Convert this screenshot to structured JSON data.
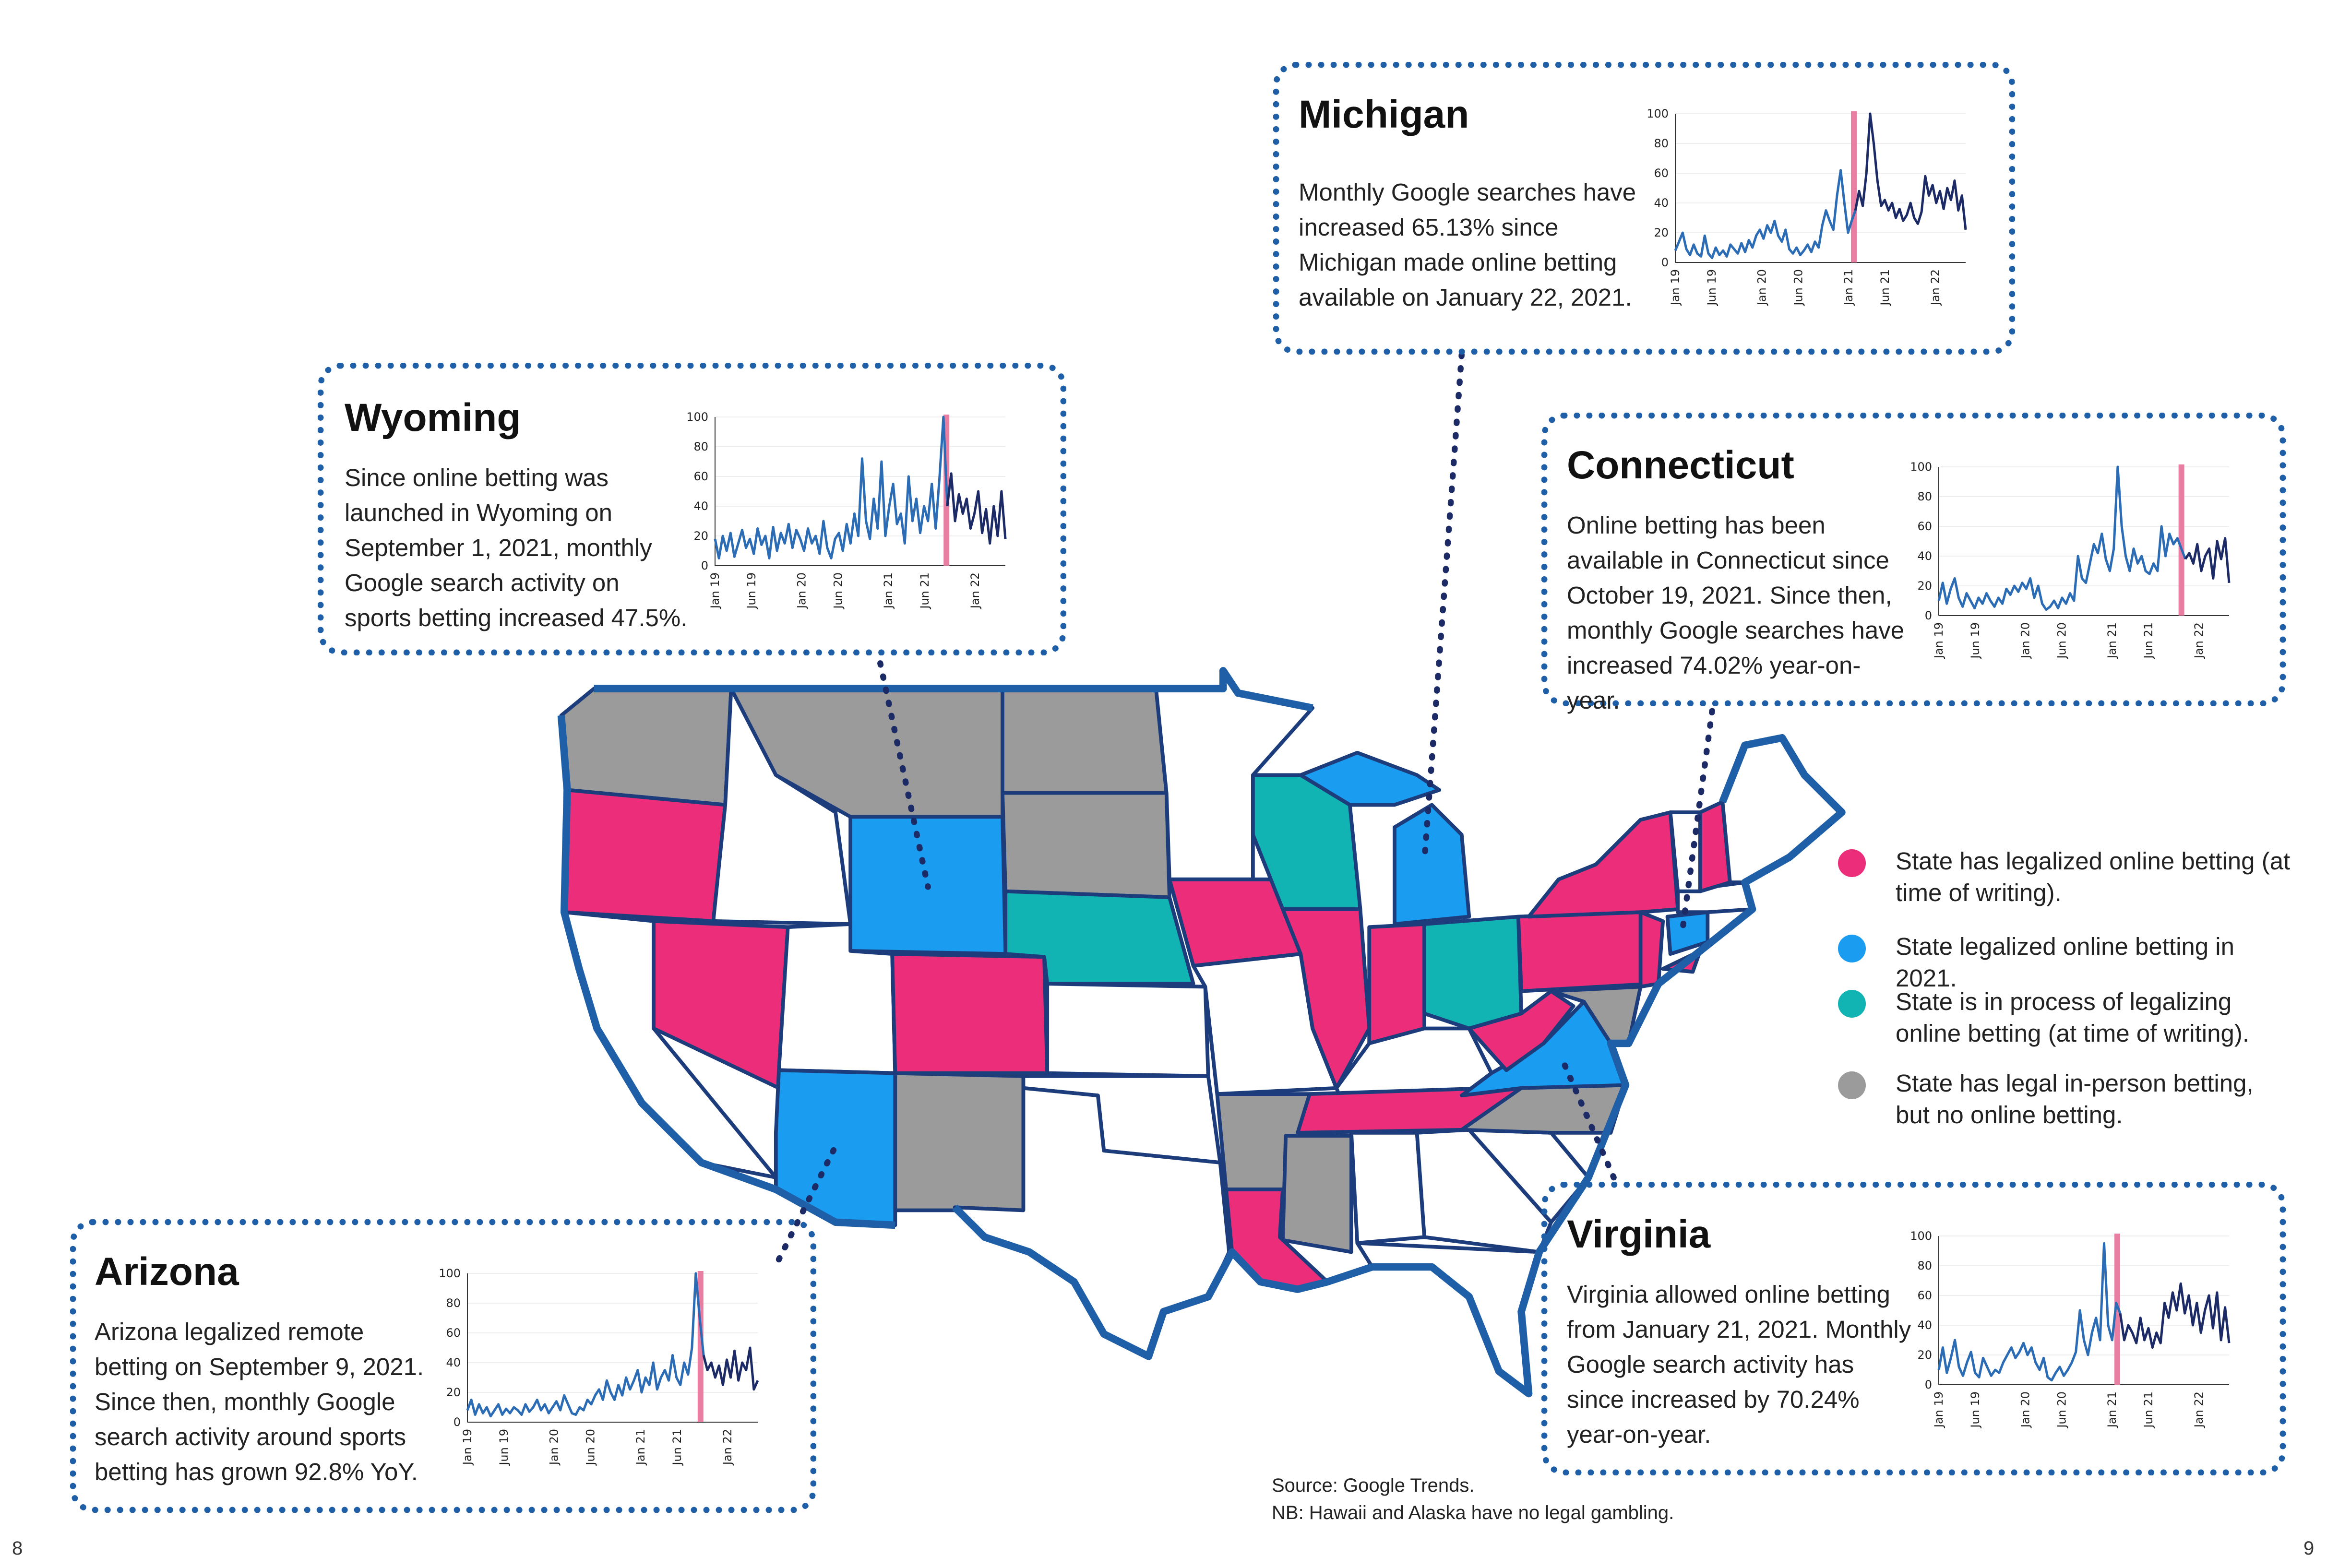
{
  "legend": {
    "items": [
      {
        "label": "State has legalized online betting (at time of writing).",
        "color": "#ec2e7a"
      },
      {
        "label": "State legalized online betting in 2021.",
        "color": "#1a9cf0"
      },
      {
        "label": "State is in process of legalizing online betting (at time of writing).",
        "color": "#12b3b3"
      },
      {
        "label": "State has legal in-person betting, but no online betting.",
        "color": "#9b9b9b"
      }
    ]
  },
  "map_colors": {
    "legal": "#ec2e7a",
    "legal_2021": "#1a9cf0",
    "in_process": "#12b3b3",
    "in_person": "#9b9b9b",
    "none": "#ffffff",
    "border": "#1c3c7c"
  },
  "source": "Source: Google Trends.",
  "nb": "NB: Hawaii and Alaska have no legal gambling.",
  "page_left": "8",
  "page_right": "9",
  "callouts": {
    "michigan": {
      "title": "Michigan",
      "text": "Monthly Google searches have increased 65.13% since Michigan made online betting available on January 22, 2021."
    },
    "wyoming": {
      "title": "Wyoming",
      "text": "Since online betting was launched in Wyoming on September 1, 2021, monthly Google search activity on sports betting increased 47.5%."
    },
    "connecticut": {
      "title": "Connecticut",
      "text": "Online betting has been available in Connecticut since October 19, 2021. Since then, monthly Google searches have increased 74.02% year-on-year."
    },
    "arizona": {
      "title": "Arizona",
      "text": "Arizona legalized remote betting on September 9, 2021. Since then, monthly Google search activity around sports betting has grown 92.8% YoY."
    },
    "virginia": {
      "title": "Virginia",
      "text": "Virginia allowed online betting from January 21, 2021. Monthly Google search activity has since increased by 70.24% year-on-year."
    }
  },
  "chart_data": [
    {
      "type": "line",
      "state": "Michigan",
      "title": "",
      "xlabel": "",
      "ylabel": "",
      "ylim": [
        0,
        100
      ],
      "yticks": [
        "0",
        "20",
        "40",
        "60",
        "80",
        "100"
      ],
      "xticks": [
        "Jan 19",
        "Jun 19",
        "Jan 20",
        "Jun 20",
        "Jan 21",
        "Jun 21",
        "Jan 22"
      ],
      "x_range": [
        2019.0,
        2022.35
      ],
      "highlight_x": 2021.06,
      "highlight_color": "#e87fa3",
      "series_color_before": "#2b6cb5",
      "series_color_after": "#1c2a66",
      "values": [
        8,
        14,
        20,
        9,
        5,
        12,
        6,
        4,
        18,
        6,
        3,
        10,
        5,
        8,
        4,
        12,
        9,
        6,
        13,
        7,
        15,
        10,
        18,
        22,
        16,
        25,
        20,
        28,
        18,
        14,
        22,
        9,
        6,
        10,
        5,
        8,
        12,
        7,
        14,
        10,
        25,
        35,
        28,
        22,
        45,
        62,
        40,
        20,
        28,
        35,
        48,
        38,
        60,
        100,
        80,
        55,
        38,
        42,
        35,
        40,
        30,
        36,
        28,
        32,
        40,
        30,
        26,
        34,
        58,
        45,
        52,
        40,
        48,
        36,
        50,
        42,
        55,
        35,
        45,
        22
      ]
    },
    {
      "type": "line",
      "state": "Wyoming",
      "title": "",
      "xlabel": "",
      "ylabel": "",
      "ylim": [
        0,
        100
      ],
      "yticks": [
        "0",
        "20",
        "40",
        "60",
        "80",
        "100"
      ],
      "xticks": [
        "Jan 19",
        "Jun 19",
        "Jan 20",
        "Jun 20",
        "Jan 21",
        "Jun 21",
        "Jan 22"
      ],
      "x_range": [
        2019.0,
        2022.35
      ],
      "highlight_x": 2021.67,
      "highlight_color": "#e87fa3",
      "series_color_before": "#2b6cb5",
      "series_color_after": "#1c2a66",
      "values": [
        18,
        5,
        20,
        10,
        22,
        6,
        15,
        24,
        12,
        18,
        8,
        25,
        14,
        20,
        5,
        26,
        10,
        22,
        15,
        28,
        12,
        24,
        18,
        10,
        25,
        15,
        20,
        8,
        30,
        12,
        5,
        18,
        22,
        10,
        28,
        15,
        35,
        20,
        72,
        30,
        18,
        45,
        25,
        70,
        20,
        40,
        55,
        28,
        35,
        15,
        60,
        30,
        45,
        22,
        40,
        30,
        55,
        25,
        60,
        100,
        40,
        62,
        30,
        48,
        35,
        45,
        25,
        35,
        50,
        22,
        38,
        15,
        40,
        20,
        50,
        18
      ]
    },
    {
      "type": "line",
      "state": "Connecticut",
      "title": "",
      "xlabel": "",
      "ylabel": "",
      "ylim": [
        0,
        100
      ],
      "yticks": [
        "0",
        "20",
        "40",
        "60",
        "80",
        "100"
      ],
      "xticks": [
        "Jan 19",
        "Jun 19",
        "Jan 20",
        "Jun 20",
        "Jan 21",
        "Jun 21",
        "Jan 22"
      ],
      "x_range": [
        2019.0,
        2022.35
      ],
      "highlight_x": 2021.8,
      "highlight_color": "#e87fa3",
      "series_color_before": "#2b6cb5",
      "series_color_after": "#1c2a66",
      "values": [
        10,
        22,
        8,
        18,
        25,
        12,
        6,
        15,
        10,
        5,
        12,
        8,
        15,
        10,
        6,
        12,
        8,
        18,
        14,
        20,
        16,
        22,
        18,
        25,
        12,
        20,
        8,
        4,
        6,
        10,
        5,
        12,
        8,
        15,
        10,
        40,
        25,
        22,
        35,
        48,
        42,
        55,
        38,
        30,
        45,
        100,
        60,
        40,
        30,
        45,
        35,
        40,
        30,
        28,
        35,
        30,
        60,
        40,
        55,
        48,
        52,
        45,
        38,
        42,
        35,
        48,
        30,
        40,
        45,
        25,
        50,
        38,
        52,
        22
      ]
    },
    {
      "type": "line",
      "state": "Arizona",
      "title": "",
      "xlabel": "",
      "ylabel": "",
      "ylim": [
        0,
        100
      ],
      "yticks": [
        "0",
        "20",
        "40",
        "60",
        "80",
        "100"
      ],
      "xticks": [
        "Jan 19",
        "Jun 19",
        "Jan 20",
        "Jun 20",
        "Jan 21",
        "Jun 21",
        "Jan 22"
      ],
      "x_range": [
        2019.0,
        2022.35
      ],
      "highlight_x": 2021.69,
      "highlight_color": "#e87fa3",
      "series_color_before": "#2b6cb5",
      "series_color_after": "#1c2a66",
      "values": [
        8,
        15,
        5,
        12,
        6,
        10,
        4,
        8,
        12,
        5,
        9,
        6,
        10,
        8,
        5,
        12,
        7,
        10,
        15,
        8,
        12,
        6,
        10,
        14,
        8,
        18,
        12,
        6,
        5,
        10,
        8,
        15,
        12,
        18,
        22,
        15,
        28,
        20,
        15,
        25,
        18,
        30,
        22,
        28,
        35,
        20,
        30,
        25,
        40,
        22,
        30,
        35,
        28,
        45,
        30,
        25,
        40,
        32,
        50,
        100,
        70,
        45,
        35,
        40,
        30,
        38,
        25,
        42,
        30,
        48,
        28,
        40,
        35,
        50,
        22,
        28
      ]
    },
    {
      "type": "line",
      "state": "Virginia",
      "title": "",
      "xlabel": "",
      "ylabel": "",
      "ylim": [
        0,
        100
      ],
      "yticks": [
        "0",
        "20",
        "40",
        "60",
        "80",
        "100"
      ],
      "xticks": [
        "Jan 19",
        "Jun 19",
        "Jan 20",
        "Jun 20",
        "Jan 21",
        "Jun 21",
        "Jan 22"
      ],
      "x_range": [
        2019.0,
        2022.35
      ],
      "highlight_x": 2021.06,
      "highlight_color": "#e87fa3",
      "series_color_before": "#2b6cb5",
      "series_color_after": "#1c2a66",
      "values": [
        10,
        25,
        8,
        18,
        30,
        12,
        6,
        15,
        22,
        8,
        5,
        18,
        12,
        6,
        10,
        8,
        15,
        20,
        25,
        18,
        22,
        28,
        20,
        25,
        15,
        10,
        18,
        5,
        3,
        8,
        12,
        6,
        10,
        15,
        22,
        50,
        30,
        20,
        35,
        45,
        30,
        95,
        40,
        30,
        55,
        48,
        30,
        40,
        35,
        28,
        45,
        30,
        38,
        25,
        35,
        28,
        55,
        45,
        62,
        50,
        68,
        48,
        60,
        40,
        55,
        35,
        50,
        60,
        38,
        62,
        30,
        52,
        28
      ]
    }
  ]
}
